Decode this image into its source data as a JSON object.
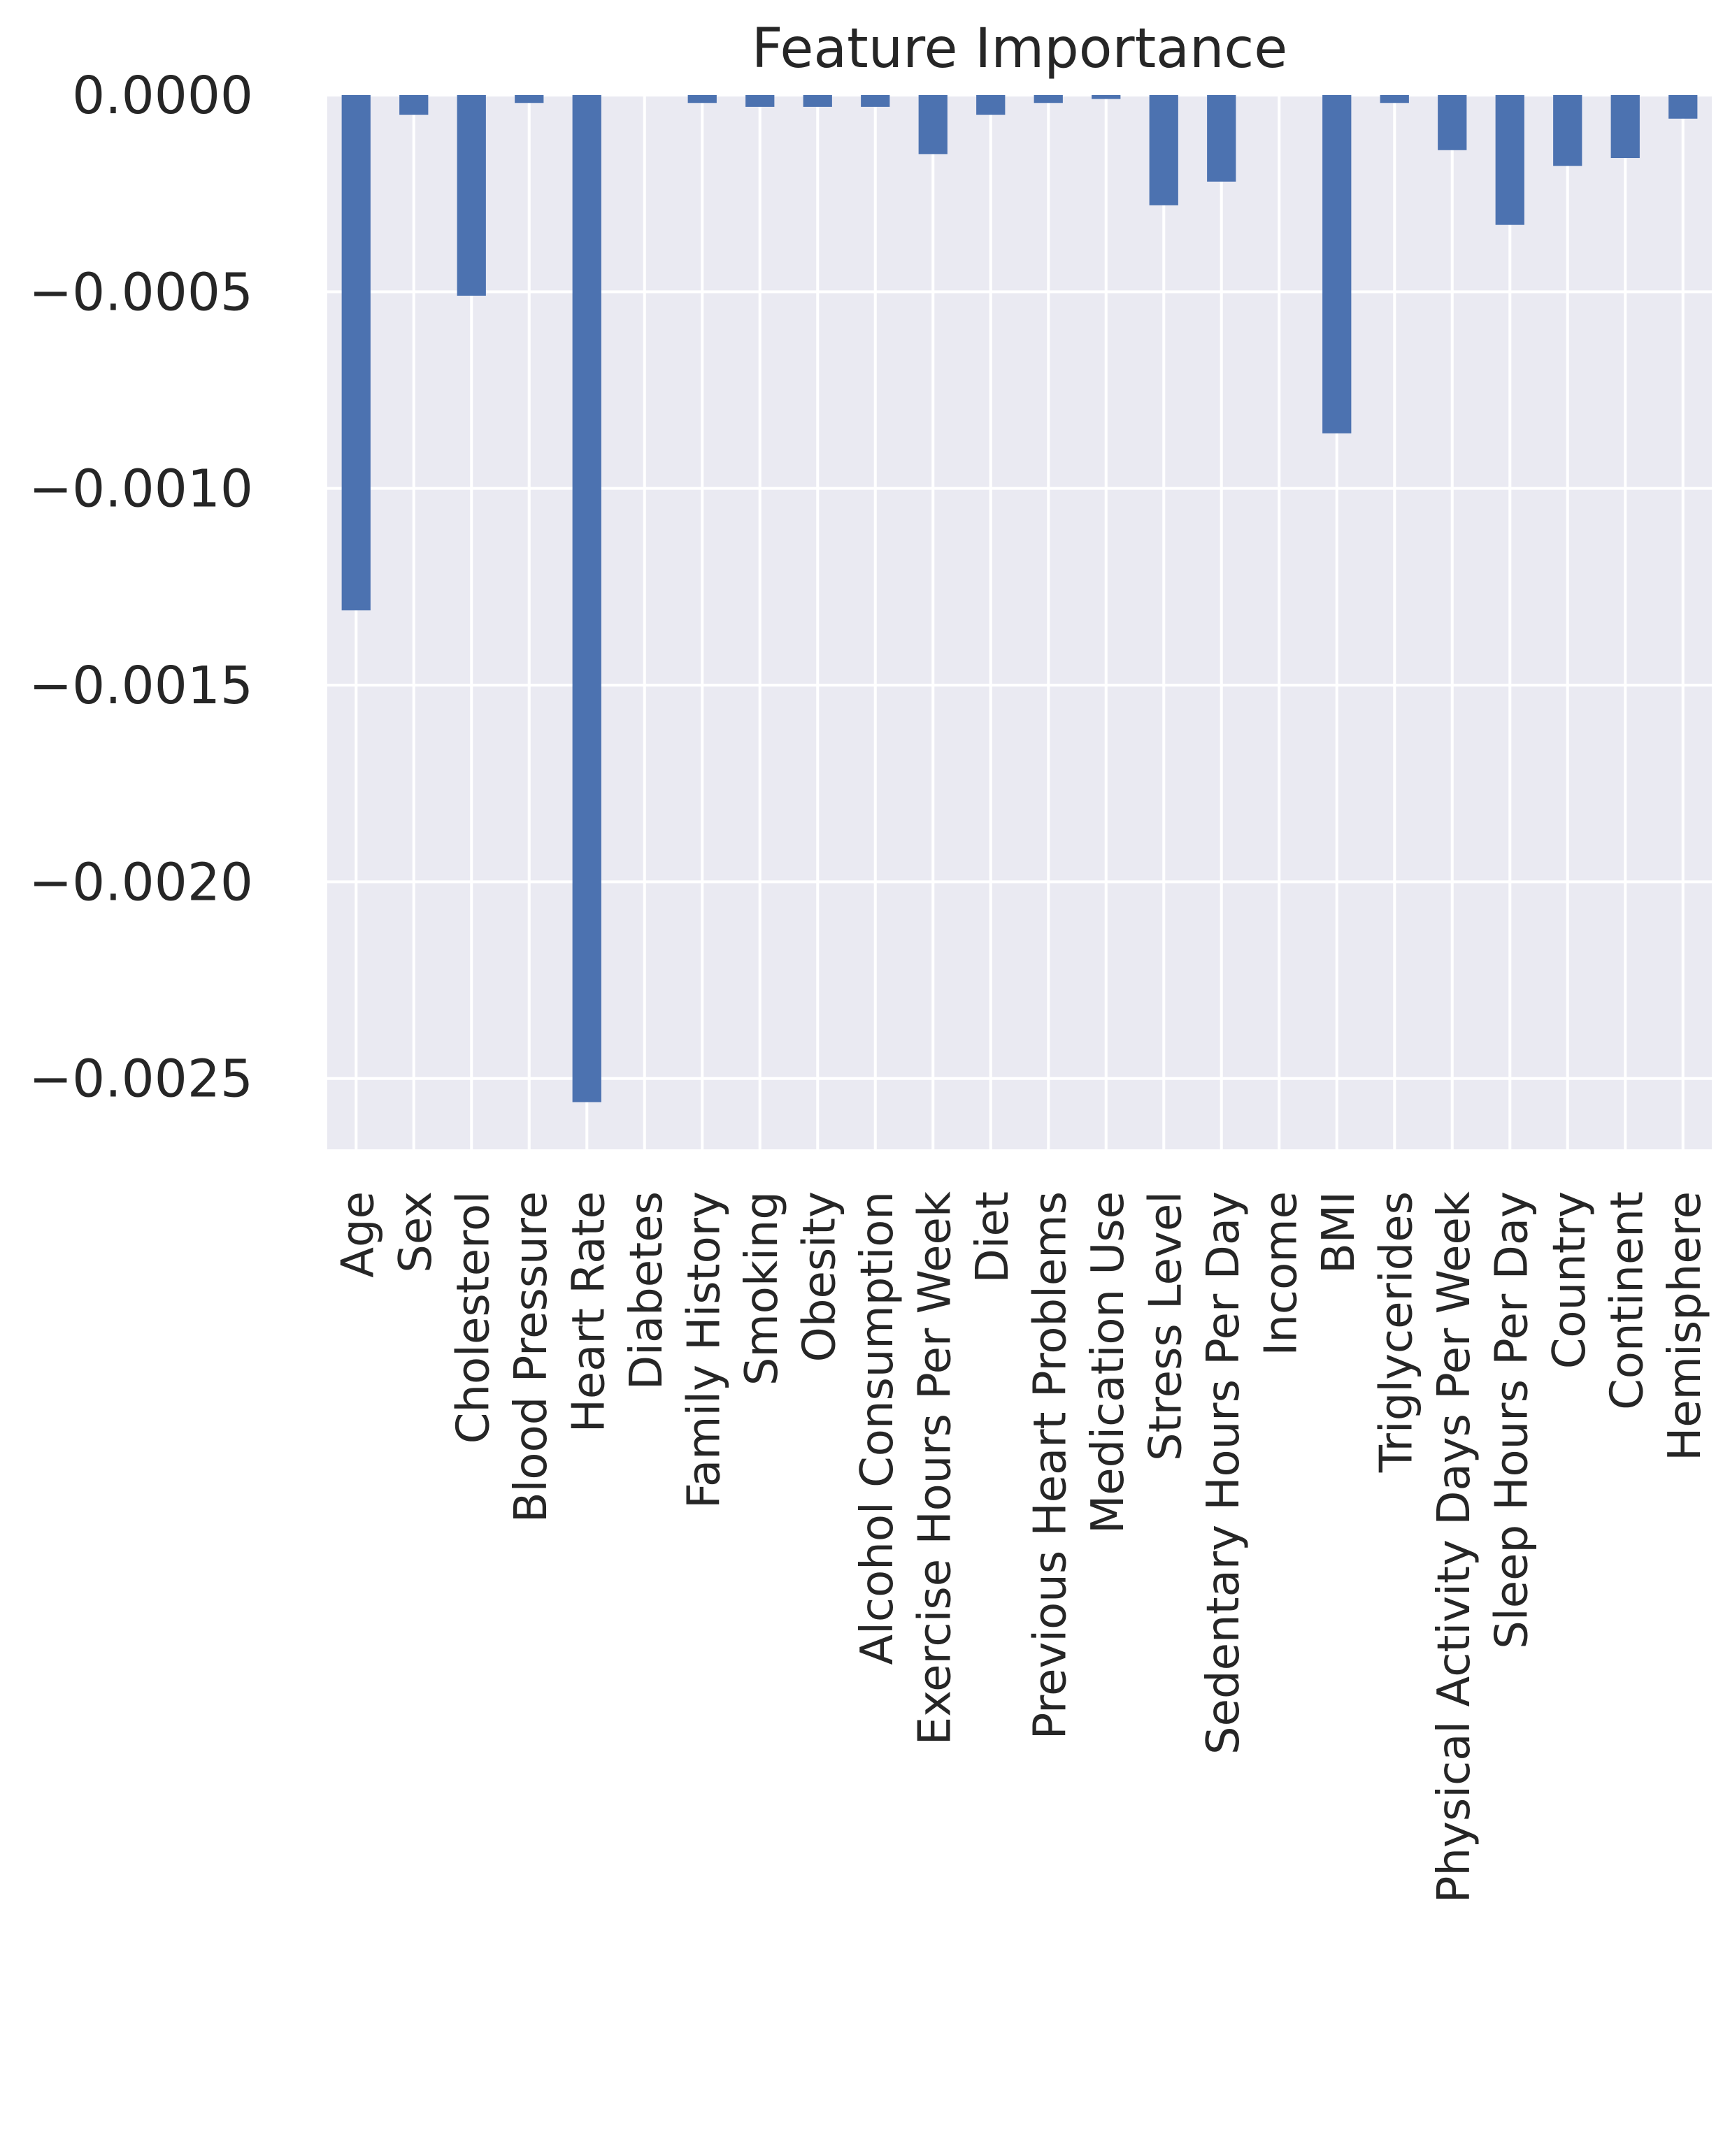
{
  "chart_data": {
    "type": "bar",
    "title": "Feature Importance",
    "xlabel": "",
    "ylabel": "",
    "ylim": [
      -0.00268,
      0.0
    ],
    "yticks": [
      0.0,
      -0.0005,
      -0.001,
      -0.0015,
      -0.002,
      -0.0025
    ],
    "ytick_labels": [
      "0.0000",
      "−0.0005",
      "−0.0010",
      "−0.0015",
      "−0.0020",
      "−0.0025"
    ],
    "grid": true,
    "categories": [
      "Age",
      "Sex",
      "Cholesterol",
      "Blood Pressure",
      "Heart Rate",
      "Diabetes",
      "Family History",
      "Smoking",
      "Obesity",
      "Alcohol Consumption",
      "Exercise Hours Per Week",
      "Diet",
      "Previous Heart Problems",
      "Medication Use",
      "Stress Level",
      "Sedentary Hours Per Day",
      "Income",
      "BMI",
      "Triglycerides",
      "Physical Activity Days Per Week",
      "Sleep Hours Per Day",
      "Country",
      "Continent",
      "Hemisphere"
    ],
    "values": [
      -0.00131,
      -5e-05,
      -0.00051,
      -2e-05,
      -0.00256,
      0.0,
      -2e-05,
      -3e-05,
      -3e-05,
      -3e-05,
      -0.00015,
      -5e-05,
      -2e-05,
      -1e-05,
      -0.00028,
      -0.00022,
      0.0,
      -0.00086,
      -2e-05,
      -0.00014,
      -0.00033,
      -0.00018,
      -0.00016,
      -6e-05
    ],
    "colors": {
      "bar": "#4c72b0",
      "plot_background": "#eaeaf2",
      "grid": "#ffffff",
      "text": "#262626"
    }
  }
}
